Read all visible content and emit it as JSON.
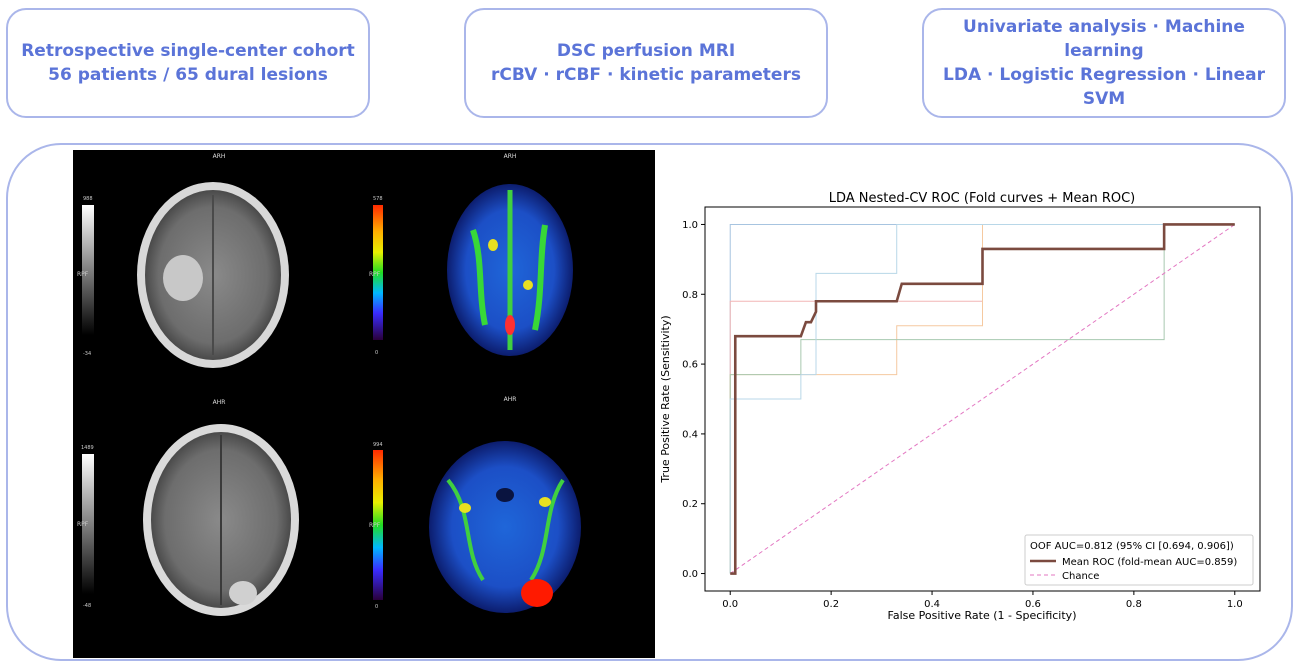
{
  "boxes": [
    {
      "line1": "Retrospective single-center cohort",
      "line2": "56 patients / 65 dural lesions"
    },
    {
      "line1": "DSC perfusion MRI",
      "line2": "rCBV · rCBF · kinetic parameters"
    },
    {
      "line1": "Univariate analysis · Machine learning",
      "line2": "LDA · Logistic Regression · Linear SVM"
    }
  ],
  "mri": {
    "panels": [
      {
        "header": "ARH",
        "scale_max": "988",
        "scale_min": "-34",
        "scale_label": "RPF",
        "kind": "gray"
      },
      {
        "header": "ARH",
        "scale_max": "578",
        "scale_min": "0",
        "scale_label": "RPF",
        "kind": "color"
      },
      {
        "header": "AHR",
        "scale_max": "1489",
        "scale_min": "-48",
        "scale_label": "RPF",
        "kind": "gray"
      },
      {
        "header": "AHR",
        "scale_max": "994",
        "scale_min": "0",
        "scale_label": "RPF",
        "kind": "color"
      }
    ]
  },
  "chart_data": {
    "type": "line",
    "title": "LDA Nested-CV ROC (Fold curves + Mean ROC)",
    "xlabel": "False Positive Rate (1 - Specificity)",
    "ylabel": "True Positive Rate (Sensitivity)",
    "xlim": [
      -0.05,
      1.05
    ],
    "ylim": [
      -0.05,
      1.05
    ],
    "xticks": [
      "0.0",
      "0.2",
      "0.4",
      "0.6",
      "0.8",
      "1.0"
    ],
    "yticks": [
      "0.0",
      "0.2",
      "0.4",
      "0.6",
      "0.8",
      "1.0"
    ],
    "grid": false,
    "legend_position": "bottom-right",
    "legend_header": "OOF AUC=0.812 (95% CI [0.694, 0.906])",
    "series": [
      {
        "name": "Mean ROC (fold-mean AUC=0.859)",
        "color": "#7b4a3f",
        "style": "solid",
        "x": [
          0,
          0.01,
          0.01,
          0.14,
          0.15,
          0.16,
          0.17,
          0.17,
          0.33,
          0.34,
          0.5,
          0.5,
          0.86,
          0.86,
          1.0
        ],
        "y": [
          0,
          0.0,
          0.68,
          0.68,
          0.72,
          0.72,
          0.75,
          0.78,
          0.78,
          0.83,
          0.83,
          0.93,
          0.93,
          1.0,
          1.0
        ]
      },
      {
        "name": "Chance",
        "color": "#e377c2",
        "style": "dashed",
        "x": [
          0,
          1
        ],
        "y": [
          0,
          1
        ]
      },
      {
        "color": "#a7c4e0",
        "style": "thin",
        "x": [
          0,
          0,
          0.33,
          0.33,
          1.0
        ],
        "y": [
          0,
          1.0,
          1.0,
          1.0,
          1.0
        ]
      },
      {
        "color": "#f2b5b5",
        "style": "thin",
        "x": [
          0,
          0,
          0.5,
          0.5,
          1.0
        ],
        "y": [
          0,
          0.78,
          0.78,
          1.0,
          1.0
        ]
      },
      {
        "color": "#f5c9a0",
        "style": "thin",
        "x": [
          0,
          0,
          0.33,
          0.33,
          0.5,
          0.5,
          1.0
        ],
        "y": [
          0,
          0.57,
          0.57,
          0.71,
          0.71,
          1.0,
          1.0
        ]
      },
      {
        "color": "#a8c9b0",
        "style": "thin",
        "x": [
          0,
          0,
          0.14,
          0.14,
          0.86,
          0.86,
          1.0
        ],
        "y": [
          0,
          0.57,
          0.57,
          0.67,
          0.67,
          1.0,
          1.0
        ]
      },
      {
        "color": "#b8d7e8",
        "style": "thin",
        "x": [
          0,
          0,
          0.14,
          0.14,
          0.17,
          0.17,
          0.33,
          0.33,
          1.0
        ],
        "y": [
          0,
          0.5,
          0.5,
          0.57,
          0.57,
          0.86,
          0.86,
          1.0,
          1.0
        ]
      }
    ]
  }
}
